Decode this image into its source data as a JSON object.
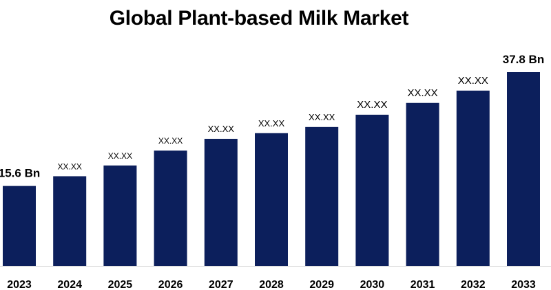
{
  "chart_data": {
    "type": "bar",
    "title": "Global Plant-based Milk Market",
    "categories": [
      "2023",
      "2024",
      "2025",
      "2026",
      "2027",
      "2028",
      "2029",
      "2030",
      "2031",
      "2032",
      "2033"
    ],
    "values": [
      15.6,
      17.5,
      19.6,
      22.5,
      24.8,
      25.9,
      27.1,
      29.5,
      31.8,
      34.2,
      37.8
    ],
    "data_labels": [
      "15.6 Bn",
      "XX.XX",
      "XX.XX",
      "XX.XX",
      "XX.XX",
      "XX.XX",
      "XX.XX",
      "XX.XX",
      "XX.XX",
      "XX.XX",
      "37.8 Bn"
    ],
    "ylim": [
      0,
      40
    ],
    "xlabel": "",
    "ylabel": "",
    "grid": false,
    "legend": "none",
    "colors": {
      "bar": "#0c1f5c",
      "axis": "#d9d9d9"
    }
  }
}
